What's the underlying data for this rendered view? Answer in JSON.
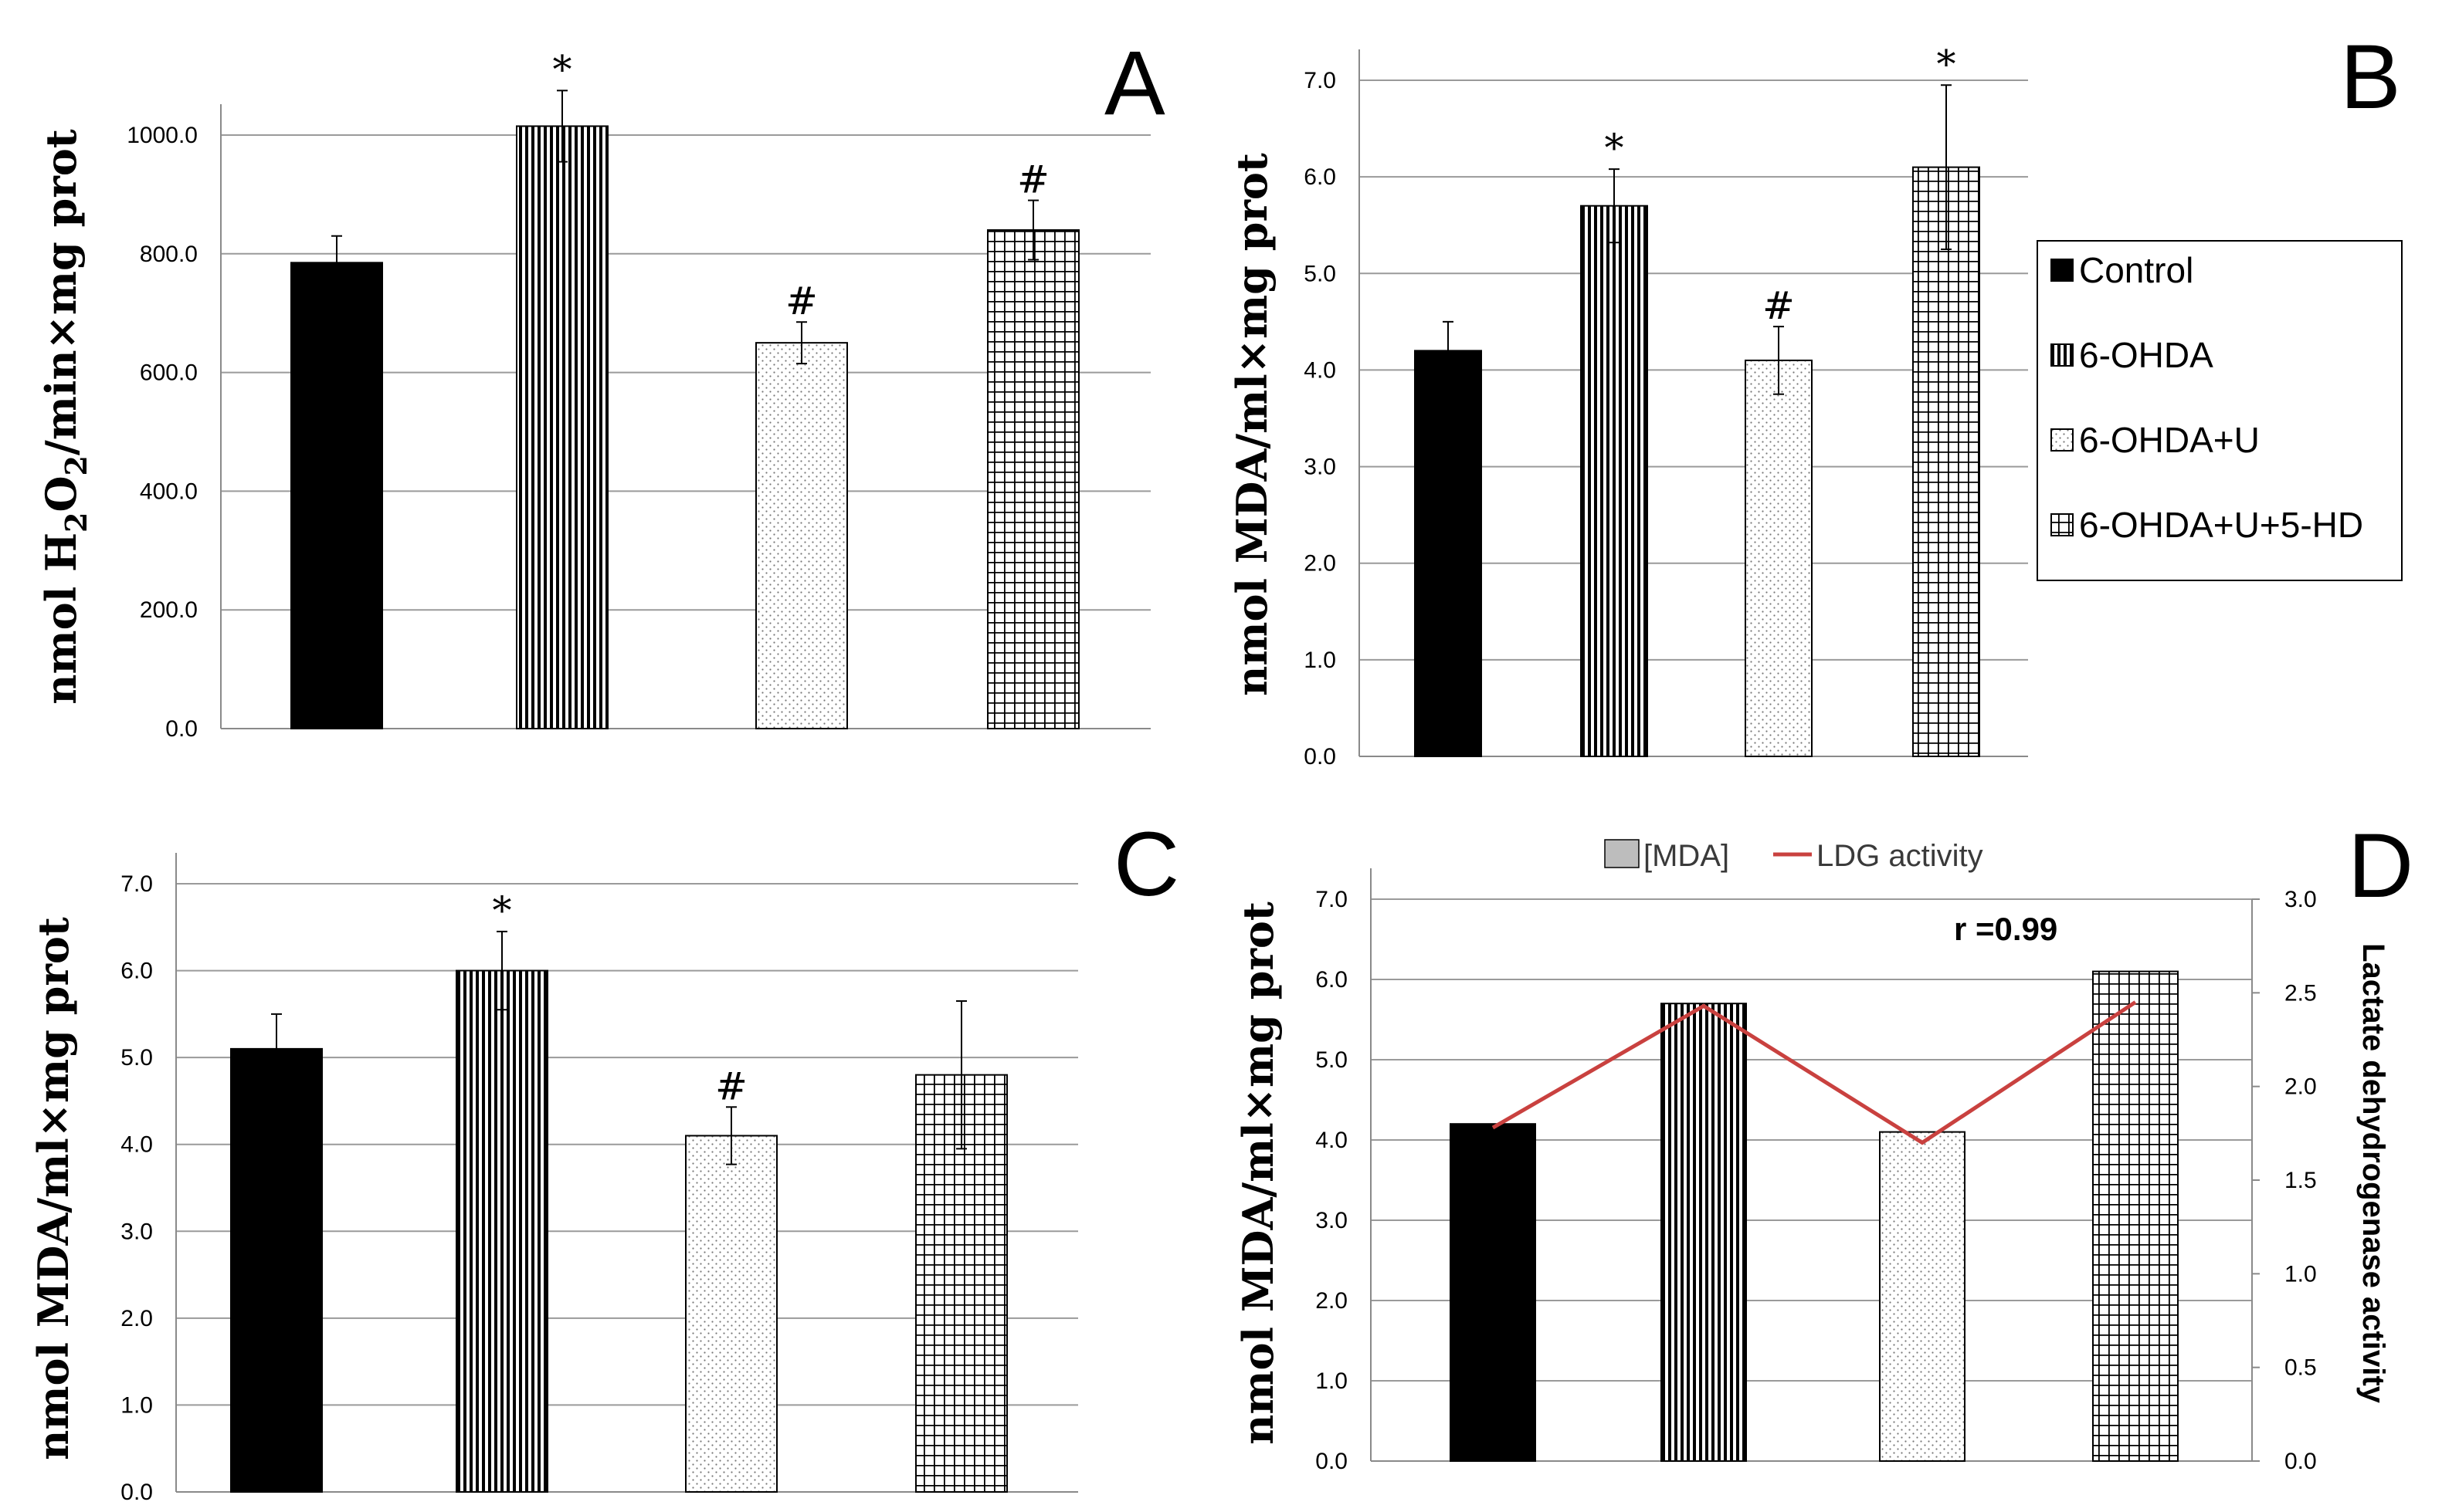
{
  "colors": {
    "grid": "#9a9a9a",
    "axis": "#8a8a8a",
    "bar_stroke": "#000000",
    "line": "#c9413f",
    "legend_grey": "#bdbdbd"
  },
  "legend": {
    "items": [
      {
        "label": "Control",
        "pattern": "solid"
      },
      {
        "label": "6-OHDA",
        "pattern": "vert"
      },
      {
        "label": "6-OHDA+U",
        "pattern": "dots"
      },
      {
        "label": "6-OHDA+U+5-HD",
        "pattern": "grid"
      }
    ]
  },
  "panels": {
    "A": {
      "letter": "A",
      "ylabel_pre": "nmol H",
      "ylabel_sub1": "2",
      "ylabel_mid": "O",
      "ylabel_sub2": "2",
      "ylabel_post": "/min×mg prot"
    },
    "B": {
      "letter": "B",
      "ylabel": "nmol MDA/ml×mg prot"
    },
    "C": {
      "letter": "C",
      "ylabel": "nmol MDA/ml×mg prot"
    },
    "D": {
      "letter": "D",
      "ylabel": "nmol MDA/ml×mg prot",
      "ylabel_right": "Lactate dehydrogenase activity",
      "legend_bar": "[MDA]",
      "legend_line": "LDG activity",
      "r_label": "r =0.99"
    }
  },
  "chart_data": [
    {
      "panel": "A",
      "type": "bar",
      "categories": [
        "Control",
        "6-OHDA",
        "6-OHDA+U",
        "6-OHDA+U+5-HD"
      ],
      "values": [
        785,
        1015,
        650,
        840
      ],
      "errors": [
        45,
        60,
        35,
        50
      ],
      "markers": [
        "",
        "*",
        "#",
        "#"
      ],
      "ylim": [
        0,
        1100
      ],
      "ticks": [
        0,
        200,
        400,
        600,
        800,
        1000
      ],
      "tick_labels": [
        "0.0",
        "200.0",
        "400.0",
        "600.0",
        "800.0",
        "1000.0"
      ],
      "ylabel": "nmol H2O2/min×mg prot"
    },
    {
      "panel": "B",
      "type": "bar",
      "categories": [
        "Control",
        "6-OHDA",
        "6-OHDA+U",
        "6-OHDA+U+5-HD"
      ],
      "values": [
        4.2,
        5.7,
        4.1,
        6.1
      ],
      "errors": [
        0.3,
        0.38,
        0.35,
        0.85
      ],
      "markers": [
        "",
        "*",
        "#",
        "*"
      ],
      "ylim": [
        0,
        7
      ],
      "ticks": [
        0,
        1,
        2,
        3,
        4,
        5,
        6,
        7
      ],
      "tick_labels": [
        "0.0",
        "1.0",
        "2.0",
        "3.0",
        "4.0",
        "5.0",
        "6.0",
        "7.0"
      ],
      "ylabel": "nmol MDA/ml×mg prot"
    },
    {
      "panel": "C",
      "type": "bar",
      "categories": [
        "Control",
        "6-OHDA",
        "6-OHDA+U",
        "6-OHDA+U+5-HD"
      ],
      "values": [
        5.1,
        6.0,
        4.1,
        4.8
      ],
      "errors": [
        0.4,
        0.45,
        0.33,
        0.85
      ],
      "markers": [
        "",
        "*",
        "#",
        ""
      ],
      "ylim": [
        0,
        7
      ],
      "ticks": [
        0,
        1,
        2,
        3,
        4,
        5,
        6,
        7
      ],
      "tick_labels": [
        "0.0",
        "1.0",
        "2.0",
        "3.0",
        "4.0",
        "5.0",
        "6.0",
        "7.0"
      ],
      "ylabel": "nmol MDA/ml×mg prot"
    },
    {
      "panel": "D",
      "type": "bar+line",
      "categories": [
        "Control",
        "6-OHDA",
        "6-OHDA+U",
        "6-OHDA+U+5-HD"
      ],
      "values": [
        4.2,
        5.7,
        4.1,
        6.1
      ],
      "line_values": [
        1.78,
        2.43,
        1.7,
        2.45
      ],
      "ylim": [
        0,
        7
      ],
      "ticks": [
        0,
        1,
        2,
        3,
        4,
        5,
        6,
        7
      ],
      "tick_labels": [
        "0.0",
        "1.0",
        "2.0",
        "3.0",
        "4.0",
        "5.0",
        "6.0",
        "7.0"
      ],
      "y2lim": [
        0,
        3
      ],
      "ticks2": [
        0,
        0.5,
        1,
        1.5,
        2,
        2.5,
        3
      ],
      "tick2_labels": [
        "0.0",
        "0.5",
        "1.0",
        "1.5",
        "2.0",
        "2.5",
        "3.0"
      ],
      "series": [
        {
          "name": "[MDA]",
          "axis": "left"
        },
        {
          "name": "LDG activity",
          "axis": "right"
        }
      ],
      "annotation": "r =0.99"
    }
  ]
}
